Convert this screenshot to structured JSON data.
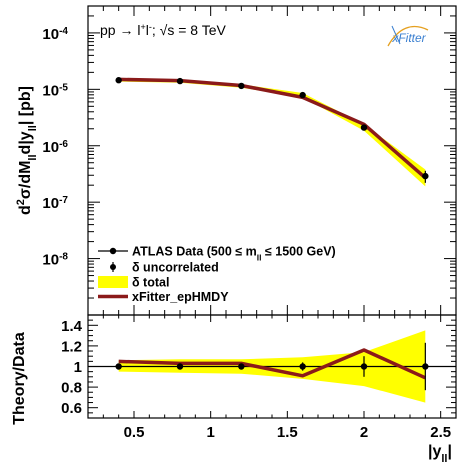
{
  "chart_data": [
    {
      "type": "line",
      "panel": "main",
      "ylabel": "d²σ/dM_ll d|y_ll| [pb]",
      "yscale": "log",
      "ylim": [
        1e-09,
        0.0003
      ],
      "xlim": [
        0.2,
        2.6
      ],
      "y_tick_labels": [
        "10-8",
        "10-7",
        "10-6",
        "10-5",
        "10-4"
      ],
      "x": [
        0.4,
        0.8,
        1.2,
        1.6,
        2.0,
        2.4
      ],
      "series": [
        {
          "name": "ATLAS Data (500 ≤ m_ll ≤ 1500 GeV)",
          "values": [
            1.45e-05,
            1.4e-05,
            1.15e-05,
            7.9e-06,
            2.1e-06,
            2.9e-07
          ]
        },
        {
          "name": "xFitter_epHMDY",
          "values": [
            1.5e-05,
            1.43e-05,
            1.17e-05,
            7.2e-06,
            2.4e-06,
            2.7e-07
          ]
        }
      ],
      "band_total": {
        "name": "δ total",
        "low": [
          1.37e-05,
          1.31e-05,
          1.07e-05,
          7.2e-06,
          1.85e-06,
          1.9e-07
        ],
        "high": [
          1.53e-05,
          1.49e-05,
          1.23e-05,
          8.6e-06,
          2.4e-06,
          3.8e-07
        ]
      },
      "uncorrelated_err": {
        "name": "δ uncorrelated",
        "low": [
          1.42e-05,
          1.37e-05,
          1.12e-05,
          7.6e-06,
          1.9e-06,
          2.2e-07
        ],
        "high": [
          1.48e-05,
          1.43e-05,
          1.18e-05,
          8.2e-06,
          2.3e-06,
          3.6e-07
        ]
      }
    },
    {
      "type": "line",
      "panel": "ratio",
      "ylabel": "Theory/Data",
      "xlabel": "|y_ll|",
      "ylim": [
        0.5,
        1.5
      ],
      "xlim": [
        0.2,
        2.6
      ],
      "y_tick_labels": [
        "0.6",
        "0.8",
        "1",
        "1.2",
        "1.4"
      ],
      "x_tick_labels": [
        "0.5",
        "1",
        "1.5",
        "2",
        "2.5"
      ],
      "x": [
        0.4,
        0.8,
        1.2,
        1.6,
        2.0,
        2.4
      ],
      "series": [
        {
          "name": "xFitter_epHMDY",
          "values": [
            1.05,
            1.03,
            1.03,
            0.91,
            1.16,
            0.89
          ]
        },
        {
          "name": "ATLAS Data",
          "values": [
            1,
            1,
            1,
            1,
            1,
            1
          ]
        }
      ],
      "band_total": {
        "low": [
          0.95,
          0.94,
          0.93,
          0.88,
          0.81,
          0.65
        ],
        "high": [
          1.06,
          1.07,
          1.07,
          1.09,
          1.14,
          1.35
        ]
      },
      "uncorrelated_err": {
        "low": [
          0.98,
          0.98,
          0.98,
          0.96,
          0.9,
          0.77
        ],
        "high": [
          1.02,
          1.02,
          1.02,
          1.04,
          1.1,
          1.23
        ]
      }
    }
  ],
  "annotations": {
    "process": "pp → l⁺l⁻;  √s = 8 TeV",
    "logo": "xFitter"
  },
  "legend": {
    "placement": "bottom-left",
    "entries": [
      "ATLAS Data (500 ≤ m_ll ≤ 1500 GeV)",
      "δ uncorrelated",
      "δ total",
      "xFitter_epHMDY"
    ]
  },
  "colors": {
    "band": "#ffff00",
    "theory": "#8b1a1a",
    "data": "#000000",
    "logo": "#3a7fd0"
  }
}
